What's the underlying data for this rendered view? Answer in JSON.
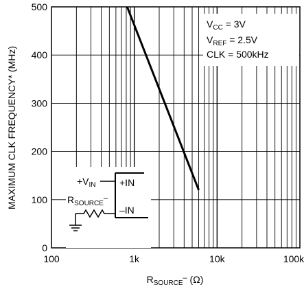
{
  "chart_data": {
    "type": "line",
    "x_scale": "log",
    "y_scale": "linear",
    "xlim": [
      100,
      100000
    ],
    "ylim": [
      0,
      500
    ],
    "grid": true,
    "x_ticks": [
      100,
      1000,
      10000,
      100000
    ],
    "x_tick_labels": [
      "100",
      "1k",
      "10k",
      "100k"
    ],
    "y_ticks": [
      0,
      100,
      200,
      300,
      400,
      500
    ],
    "y_tick_labels": [
      "0",
      "100",
      "200",
      "300",
      "400",
      "500"
    ],
    "ylabel": "MAXIMUM CLK FREQUENCY* (MHz)",
    "xlabel": {
      "main": "R",
      "sub": "SOURCE",
      "sup": "–",
      "unit": " (Ω)"
    },
    "series": [
      {
        "x": [
          820,
          6000
        ],
        "y": [
          500,
          120
        ]
      }
    ],
    "conditions": [
      {
        "main": "V",
        "sub": "CC",
        "rest": " = 3V"
      },
      {
        "main": "V",
        "sub": "REF",
        "rest": " = 2.5V"
      },
      {
        "main": "CLK = 500kHz",
        "sub": "",
        "rest": ""
      }
    ],
    "inset": {
      "vin_main": "+V",
      "vin_sub": "IN",
      "plus_label": "+IN",
      "rsource_main": "R",
      "rsource_sub": "SOURCE",
      "rsource_sup": "–",
      "minus_label": "–IN"
    }
  }
}
